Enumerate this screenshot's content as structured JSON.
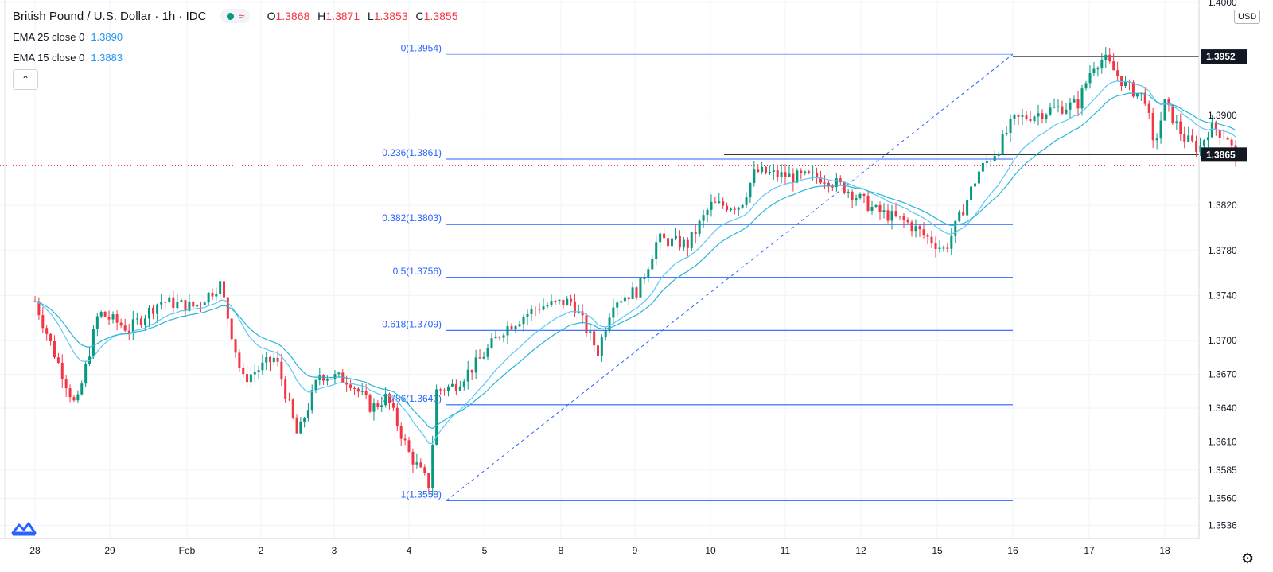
{
  "header": {
    "symbol_title": "British Pound / U.S. Dollar · 1h · IDC",
    "ohlc": {
      "o_label": "O",
      "o_value": "1.3868",
      "h_label": "H",
      "h_value": "1.3871",
      "l_label": "L",
      "l_value": "1.3853",
      "c_label": "C",
      "c_value": "1.3855"
    },
    "indicators": [
      {
        "name": "EMA 25 close 0",
        "value": "1.3890"
      },
      {
        "name": "EMA 15 close 0",
        "value": "1.3883"
      }
    ],
    "collapse_icon": "chevron-up-icon"
  },
  "price_scale": {
    "currency": "USD",
    "ticks": [
      "1.4000",
      "1.3900",
      "1.3820",
      "1.3780",
      "1.3740",
      "1.3700",
      "1.3670",
      "1.3640",
      "1.3610",
      "1.3585",
      "1.3560",
      "1.3536"
    ],
    "labels": [
      {
        "text": "1.3952",
        "color": "#131722"
      },
      {
        "text": "1.3865",
        "color": "#131722"
      }
    ]
  },
  "time_scale": {
    "ticks": [
      "28",
      "29",
      "Feb",
      "2",
      "3",
      "4",
      "5",
      "8",
      "9",
      "10",
      "11",
      "12",
      "15",
      "16",
      "17",
      "18"
    ]
  },
  "fibonacci": {
    "levels": [
      {
        "label": "0(1.3954)",
        "ratio": 0,
        "price": 1.3954
      },
      {
        "label": "0.236(1.3861)",
        "ratio": 0.236,
        "price": 1.3861
      },
      {
        "label": "0.382(1.3803)",
        "ratio": 0.382,
        "price": 1.3803
      },
      {
        "label": "0.5(1.3756)",
        "ratio": 0.5,
        "price": 1.3756
      },
      {
        "label": "0.618(1.3709)",
        "ratio": 0.618,
        "price": 1.3709
      },
      {
        "label": "0.786(1.3643)",
        "ratio": 0.786,
        "price": 1.3643
      },
      {
        "label": "1(1.3558)",
        "ratio": 1,
        "price": 1.3558
      }
    ],
    "color": "#2962ff"
  },
  "colors": {
    "up": "#089981",
    "down": "#f23645",
    "ema_fast": "#5ac8f5",
    "ema_slow": "#29b6d6",
    "grid": "#f0f3fa"
  },
  "chart_data": {
    "type": "candlestick",
    "title": "British Pound / U.S. Dollar · 1h · IDC",
    "x_ticks": [
      "28",
      "29",
      "Feb",
      "2",
      "3",
      "4",
      "5",
      "8",
      "9",
      "10",
      "11",
      "12",
      "15",
      "16",
      "17",
      "18"
    ],
    "ylim": [
      1.3525,
      1.4005
    ],
    "anchors": [
      {
        "d": 0.0,
        "p": 1.3735
      },
      {
        "d": 0.25,
        "p": 1.369
      },
      {
        "d": 0.55,
        "p": 1.364
      },
      {
        "d": 0.85,
        "p": 1.3725
      },
      {
        "d": 1.25,
        "p": 1.371
      },
      {
        "d": 1.65,
        "p": 1.3735
      },
      {
        "d": 2.1,
        "p": 1.373
      },
      {
        "d": 2.45,
        "p": 1.375
      },
      {
        "d": 2.75,
        "p": 1.3665
      },
      {
        "d": 3.2,
        "p": 1.3685
      },
      {
        "d": 3.35,
        "p": 1.365
      },
      {
        "d": 3.5,
        "p": 1.3615
      },
      {
        "d": 3.8,
        "p": 1.367
      },
      {
        "d": 4.2,
        "p": 1.3665
      },
      {
        "d": 4.5,
        "p": 1.364
      },
      {
        "d": 4.7,
        "p": 1.365
      },
      {
        "d": 5.0,
        "p": 1.36
      },
      {
        "d": 5.28,
        "p": 1.357
      },
      {
        "d": 5.35,
        "p": 1.3655
      },
      {
        "d": 5.6,
        "p": 1.366
      },
      {
        "d": 5.9,
        "p": 1.368
      },
      {
        "d": 6.25,
        "p": 1.371
      },
      {
        "d": 6.7,
        "p": 1.373
      },
      {
        "d": 7.15,
        "p": 1.3735
      },
      {
        "d": 7.5,
        "p": 1.369
      },
      {
        "d": 7.7,
        "p": 1.3735
      },
      {
        "d": 8.05,
        "p": 1.3745
      },
      {
        "d": 8.3,
        "p": 1.379
      },
      {
        "d": 8.7,
        "p": 1.3785
      },
      {
        "d": 9.0,
        "p": 1.382
      },
      {
        "d": 9.4,
        "p": 1.382
      },
      {
        "d": 9.6,
        "p": 1.385
      },
      {
        "d": 10.1,
        "p": 1.3845
      },
      {
        "d": 10.5,
        "p": 1.3845
      },
      {
        "d": 10.8,
        "p": 1.3835
      },
      {
        "d": 11.2,
        "p": 1.3815
      },
      {
        "d": 11.6,
        "p": 1.3805
      },
      {
        "d": 11.9,
        "p": 1.379
      },
      {
        "d": 12.1,
        "p": 1.378
      },
      {
        "d": 12.3,
        "p": 1.381
      },
      {
        "d": 12.55,
        "p": 1.385
      },
      {
        "d": 12.8,
        "p": 1.387
      },
      {
        "d": 13.0,
        "p": 1.3895
      },
      {
        "d": 13.5,
        "p": 1.3905
      },
      {
        "d": 13.85,
        "p": 1.391
      },
      {
        "d": 14.05,
        "p": 1.3945
      },
      {
        "d": 14.2,
        "p": 1.395
      },
      {
        "d": 14.5,
        "p": 1.3925
      },
      {
        "d": 14.75,
        "p": 1.3915
      },
      {
        "d": 14.85,
        "p": 1.387
      },
      {
        "d": 15.0,
        "p": 1.391
      },
      {
        "d": 15.25,
        "p": 1.388
      },
      {
        "d": 15.45,
        "p": 1.387
      },
      {
        "d": 15.6,
        "p": 1.389
      },
      {
        "d": 15.85,
        "p": 1.388
      },
      {
        "d": 15.95,
        "p": 1.3855
      }
    ],
    "ema_values": {
      "ema25": 1.389,
      "ema15": 1.3883
    }
  }
}
